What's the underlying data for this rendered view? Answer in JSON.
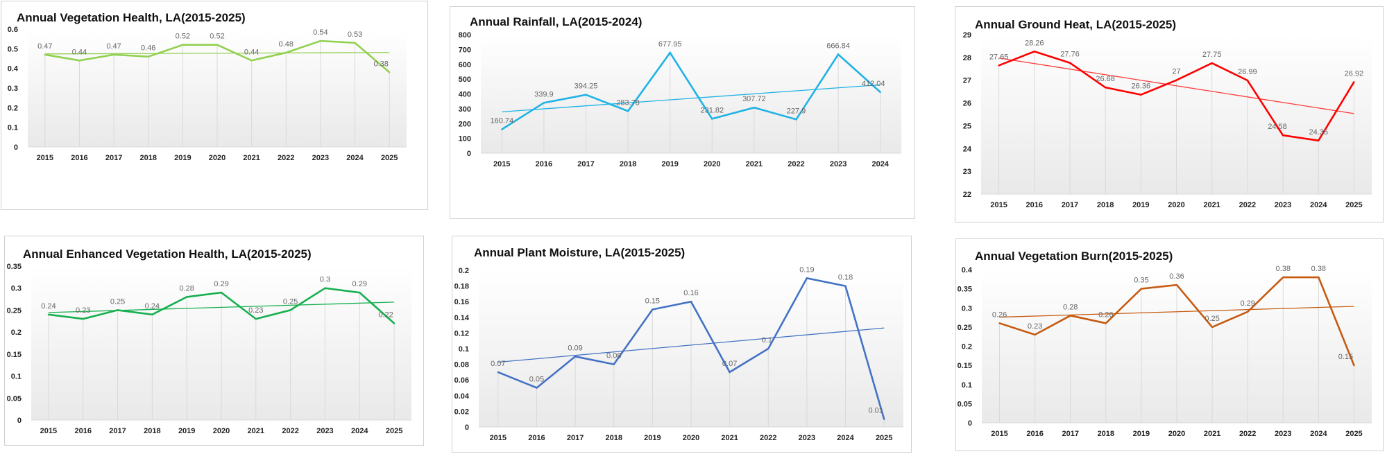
{
  "chart_data": [
    {
      "id": "ndvi",
      "type": "line",
      "title": "Annual Vegetation Health, LA(2015-2025)",
      "categories": [
        "2015",
        "2016",
        "2017",
        "2018",
        "2019",
        "2020",
        "2021",
        "2022",
        "2023",
        "2024",
        "2025"
      ],
      "values": [
        0.47,
        0.44,
        0.47,
        0.46,
        0.52,
        0.52,
        0.44,
        0.48,
        0.54,
        0.53,
        0.38
      ],
      "value_labels": [
        "0.47",
        "0.44",
        "0.47",
        "0.46",
        "0.52",
        "0.52",
        "0.44",
        "0.48",
        "0.54",
        "0.53",
        "0.38"
      ],
      "ylim": [
        0,
        0.6
      ],
      "yticks": [
        0,
        0.1,
        0.2,
        0.3,
        0.4,
        0.5,
        0.6
      ],
      "ytick_labels": [
        "0",
        "0.1",
        "0.2",
        "0.3",
        "0.4",
        "0.5",
        "0.6"
      ],
      "trendline": "linear",
      "color": "#92d050",
      "trend_color": "#92d050",
      "xlabel": "",
      "ylabel": ""
    },
    {
      "id": "rainfall",
      "type": "line",
      "title": "Annual Rainfall,  LA(2015-2024)",
      "categories": [
        "2015",
        "2016",
        "2017",
        "2018",
        "2019",
        "2020",
        "2021",
        "2022",
        "2023",
        "2024"
      ],
      "values": [
        160.74,
        339.9,
        394.25,
        283.78,
        677.95,
        231.82,
        307.72,
        227.9,
        666.84,
        412.04
      ],
      "value_labels": [
        "160.74",
        "339.9",
        "394.25",
        "283.78",
        "677.95",
        "231.82",
        "307.72",
        "227.9",
        "666.84",
        "412.04"
      ],
      "ylim": [
        0,
        800
      ],
      "yticks": [
        0,
        100,
        200,
        300,
        400,
        500,
        600,
        700,
        800
      ],
      "ytick_labels": [
        "0",
        "100",
        "200",
        "300",
        "400",
        "500",
        "600",
        "700",
        "800"
      ],
      "trendline": "linear",
      "color": "#1fb2e6",
      "trend_color": "#1fb2e6",
      "xlabel": "",
      "ylabel": ""
    },
    {
      "id": "ground-heat",
      "type": "line",
      "title": "Annual Ground Heat,  LA(2015-2025)",
      "categories": [
        "2015",
        "2016",
        "2017",
        "2018",
        "2019",
        "2020",
        "2021",
        "2022",
        "2023",
        "2024",
        "2025"
      ],
      "values": [
        27.65,
        28.26,
        27.76,
        26.68,
        26.36,
        27,
        27.75,
        26.99,
        24.58,
        24.35,
        26.92
      ],
      "value_labels": [
        "27.65",
        "28.26",
        "27.76",
        "26.68",
        "26.36",
        "27",
        "27.75",
        "26.99",
        "24.58",
        "24.35",
        "26.92"
      ],
      "ylim": [
        22,
        29
      ],
      "yticks": [
        22,
        23,
        24,
        25,
        26,
        27,
        28,
        29
      ],
      "ytick_labels": [
        "22",
        "23",
        "24",
        "25",
        "26",
        "27",
        "28",
        "29"
      ],
      "trendline": "linear",
      "color": "#ff0000",
      "trend_color": "#ff3b3b",
      "xlabel": "",
      "ylabel": ""
    },
    {
      "id": "evi",
      "type": "line",
      "title": "Annual Enhanced Vegetation Health,  LA(2015-2025)",
      "categories": [
        "2015",
        "2016",
        "2017",
        "2018",
        "2019",
        "2020",
        "2021",
        "2022",
        "2023",
        "2024",
        "2025"
      ],
      "values": [
        0.24,
        0.23,
        0.25,
        0.24,
        0.28,
        0.29,
        0.23,
        0.25,
        0.3,
        0.29,
        0.22
      ],
      "value_labels": [
        "0.24",
        "0.23",
        "0.25",
        "0.24",
        "0.28",
        "0.29",
        "0.23",
        "0.25",
        "0.3",
        "0.29",
        "0.22"
      ],
      "ylim": [
        0,
        0.35
      ],
      "yticks": [
        0,
        0.05,
        0.1,
        0.15,
        0.2,
        0.25,
        0.3,
        0.35
      ],
      "ytick_labels": [
        "0",
        "0.05",
        "0.1",
        "0.15",
        "0.2",
        "0.25",
        "0.3",
        "0.35"
      ],
      "trendline": "linear",
      "color": "#16b04f",
      "trend_color": "#16b04f",
      "xlabel": "",
      "ylabel": ""
    },
    {
      "id": "plant-moisture",
      "type": "line",
      "title": "Annual Plant Moisture,  LA(2015-2025)",
      "categories": [
        "2015",
        "2016",
        "2017",
        "2018",
        "2019",
        "2020",
        "2021",
        "2022",
        "2023",
        "2024",
        "2025"
      ],
      "values": [
        0.07,
        0.05,
        0.09,
        0.08,
        0.15,
        0.16,
        0.07,
        0.1,
        0.19,
        0.18,
        0.01
      ],
      "value_labels": [
        "0.07",
        "0.05",
        "0.09",
        "0.08",
        "0.15",
        "0.16",
        "0.07",
        "0.1",
        "0.19",
        "0.18",
        "0.01"
      ],
      "ylim": [
        0,
        0.2
      ],
      "yticks": [
        0,
        0.02,
        0.04,
        0.06,
        0.08,
        0.1,
        0.12,
        0.14,
        0.16,
        0.18,
        0.2
      ],
      "ytick_labels": [
        "0",
        "0.02",
        "0.04",
        "0.06",
        "0.08",
        "0.1",
        "0.12",
        "0.14",
        "0.16",
        "0.18",
        "0.2"
      ],
      "trendline": "linear",
      "color": "#4472c4",
      "trend_color": "#4472c4",
      "xlabel": "",
      "ylabel": ""
    },
    {
      "id": "vegetation-burn",
      "type": "line",
      "title": "Annual Vegetation Burn(2015-2025)",
      "categories": [
        "2015",
        "2016",
        "2017",
        "2018",
        "2019",
        "2020",
        "2021",
        "2022",
        "2023",
        "2024",
        "2025"
      ],
      "values": [
        0.26,
        0.23,
        0.28,
        0.26,
        0.35,
        0.36,
        0.25,
        0.29,
        0.38,
        0.38,
        0.15
      ],
      "value_labels": [
        "0.26",
        "0.23",
        "0.28",
        "0.26",
        "0.35",
        "0.36",
        "0.25",
        "0.29",
        "0.38",
        "0.38",
        "0.15"
      ],
      "ylim": [
        0,
        0.4
      ],
      "yticks": [
        0,
        0.05,
        0.1,
        0.15,
        0.2,
        0.25,
        0.3,
        0.35,
        0.4
      ],
      "ytick_labels": [
        "0",
        "0.05",
        "0.1",
        "0.15",
        "0.2",
        "0.25",
        "0.3",
        "0.35",
        "0.4"
      ],
      "trendline": "linear",
      "color": "#c55a11",
      "trend_color": "#c55a11",
      "xlabel": "",
      "ylabel": ""
    }
  ]
}
